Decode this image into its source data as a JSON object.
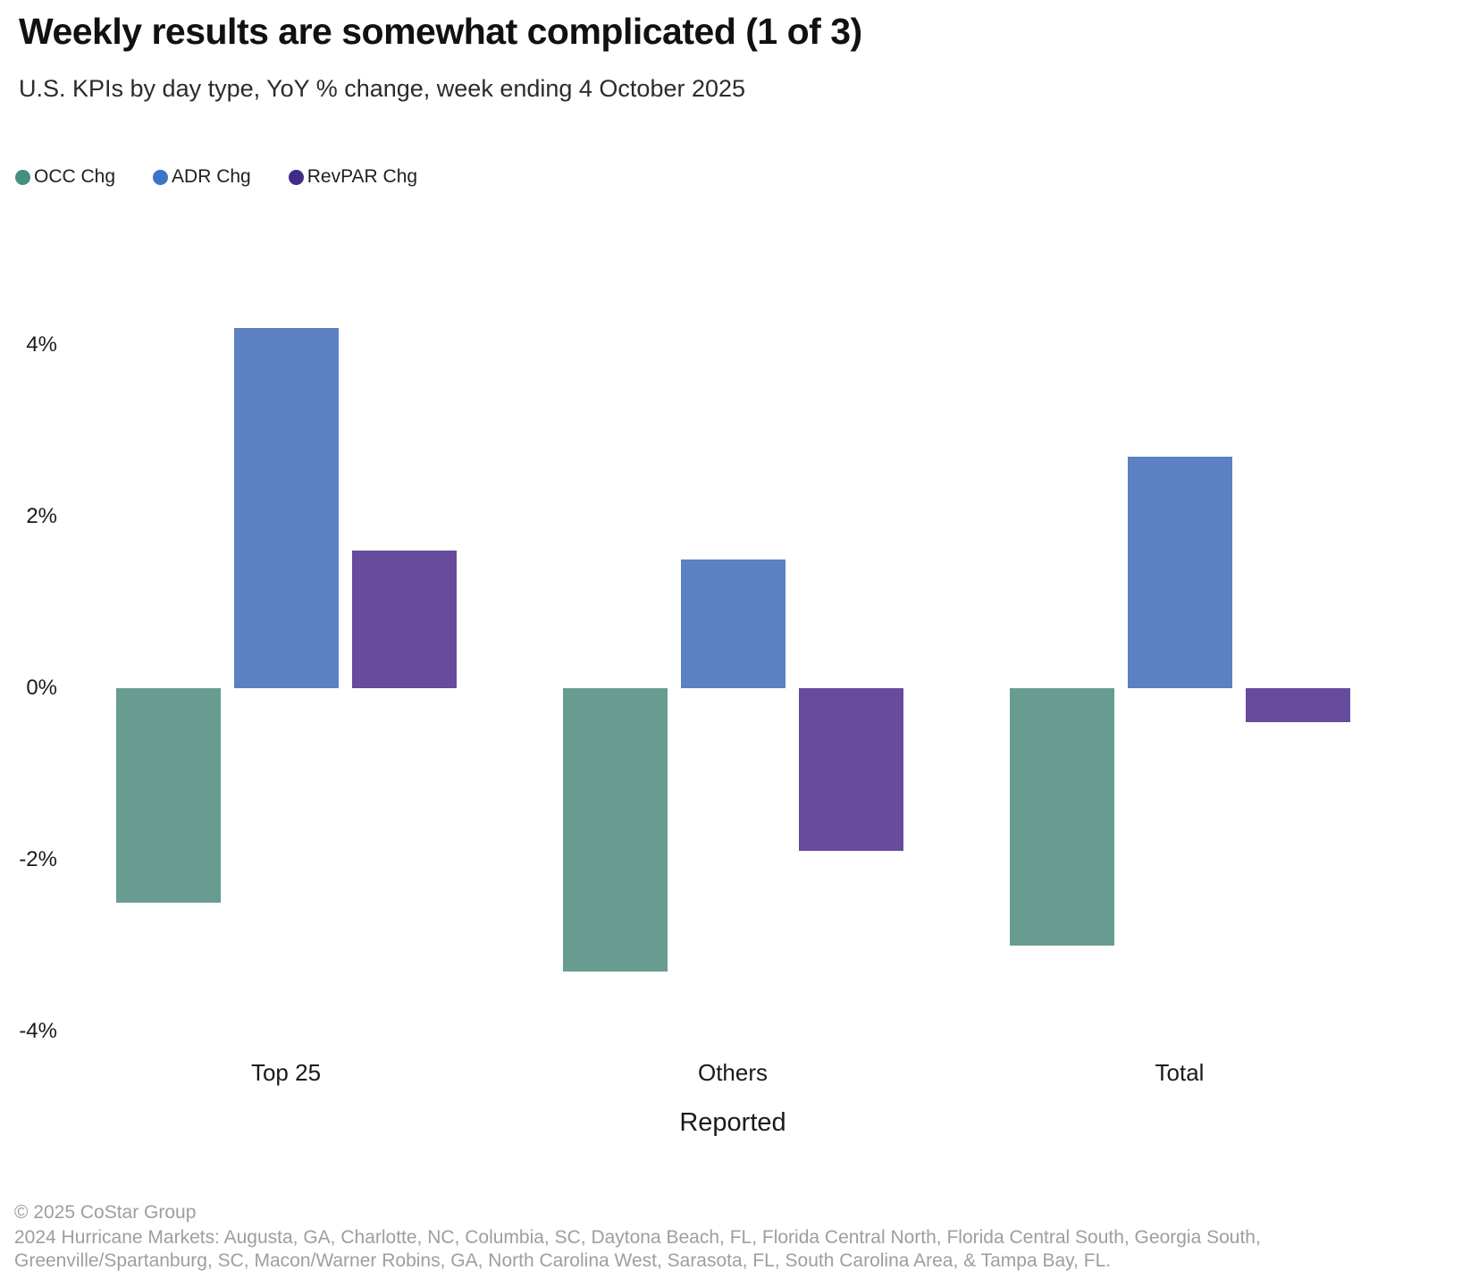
{
  "header": {
    "title": "Weekly results are somewhat complicated (1 of 3)",
    "subtitle": "U.S. KPIs by day type, YoY % change, week ending 4 October 2025"
  },
  "legend": {
    "items": [
      {
        "label": "OCC Chg",
        "dot_color": "#43907f"
      },
      {
        "label": "ADR Chg",
        "dot_color": "#3d73c9"
      },
      {
        "label": "RevPAR Chg",
        "dot_color": "#402c85"
      }
    ]
  },
  "chart_data": {
    "type": "bar",
    "categories": [
      "Top 25",
      "Others",
      "Total"
    ],
    "series": [
      {
        "name": "OCC Chg",
        "color": "#689c91",
        "values": [
          -2.5,
          -3.3,
          -3.0
        ]
      },
      {
        "name": "ADR Chg",
        "color": "#5b81c2",
        "values": [
          4.2,
          1.5,
          2.7
        ]
      },
      {
        "name": "RevPAR Chg",
        "color": "#674b9d",
        "values": [
          1.6,
          -1.9,
          -0.4
        ]
      }
    ],
    "xlabel": "Reported",
    "ylabel": "",
    "yticks": [
      {
        "value": 4,
        "label": "4%"
      },
      {
        "value": 2,
        "label": "2%"
      },
      {
        "value": 0,
        "label": "0%"
      },
      {
        "value": -2,
        "label": "-2%"
      },
      {
        "value": -4,
        "label": "-4%"
      }
    ],
    "ylim": [
      -4.6,
      4.6
    ],
    "grid": false,
    "legend_position": "top-left"
  },
  "footer": {
    "copyright": "© 2025 CoStar Group",
    "note": "2024 Hurricane Markets: Augusta, GA, Charlotte, NC, Columbia, SC, Daytona Beach, FL, Florida Central North, Florida Central South, Georgia South, Greenville/Spartanburg, SC, Macon/Warner Robins, GA, North Carolina West, Sarasota, FL, South Carolina Area, & Tampa Bay, FL."
  }
}
